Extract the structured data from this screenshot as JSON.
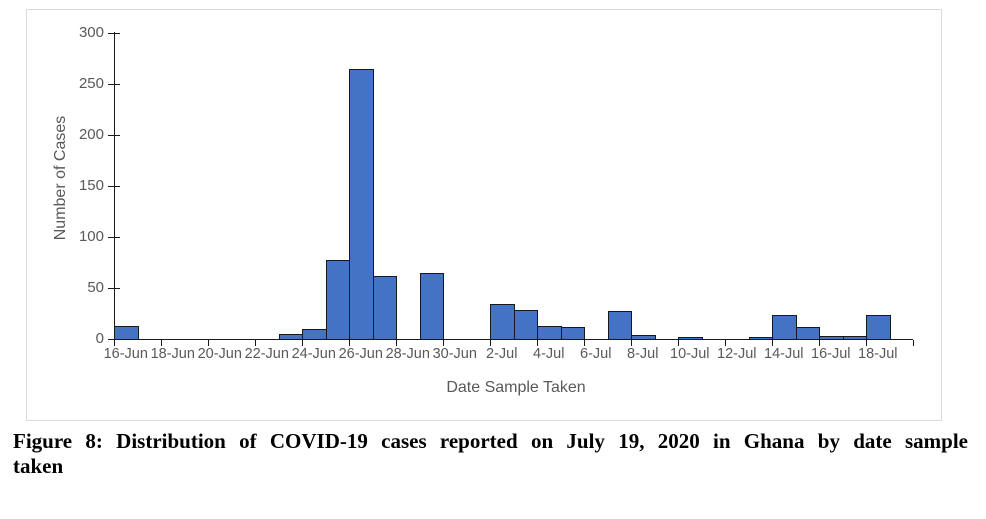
{
  "figure": {
    "caption_line1": "Figure 8: Distribution of COVID-19 cases reported on July 19, 2020 in Ghana by date sample",
    "caption_line2": "taken"
  },
  "chart_data": {
    "type": "bar",
    "title": "",
    "xlabel": "Date Sample Taken",
    "ylabel": "Number of Cases",
    "categories": [
      "16-Jun",
      "17-Jun",
      "18-Jun",
      "19-Jun",
      "20-Jun",
      "21-Jun",
      "22-Jun",
      "23-Jun",
      "24-Jun",
      "25-Jun",
      "26-Jun",
      "27-Jun",
      "28-Jun",
      "29-Jun",
      "30-Jun",
      "1-Jul",
      "2-Jul",
      "3-Jul",
      "4-Jul",
      "5-Jul",
      "6-Jul",
      "7-Jul",
      "8-Jul",
      "9-Jul",
      "10-Jul",
      "11-Jul",
      "12-Jul",
      "13-Jul",
      "14-Jul",
      "15-Jul",
      "16-Jul",
      "17-Jul",
      "18-Jul"
    ],
    "values": [
      13,
      0,
      0,
      0,
      0,
      0,
      0,
      5,
      10,
      77,
      265,
      62,
      0,
      65,
      0,
      0,
      34,
      28,
      13,
      12,
      0,
      27,
      4,
      0,
      2,
      0,
      0,
      2,
      24,
      12,
      3,
      3,
      24
    ],
    "x_labels_shown_every": 2,
    "yticks": [
      0,
      50,
      100,
      150,
      200,
      250,
      300
    ],
    "ylim": [
      0,
      300
    ],
    "grid": false,
    "legend": "none",
    "bar_color": "#4472c4",
    "bar_border_color": "#16191f",
    "axis_color": "#1a1a1a",
    "axis_text_color": "#595959"
  }
}
